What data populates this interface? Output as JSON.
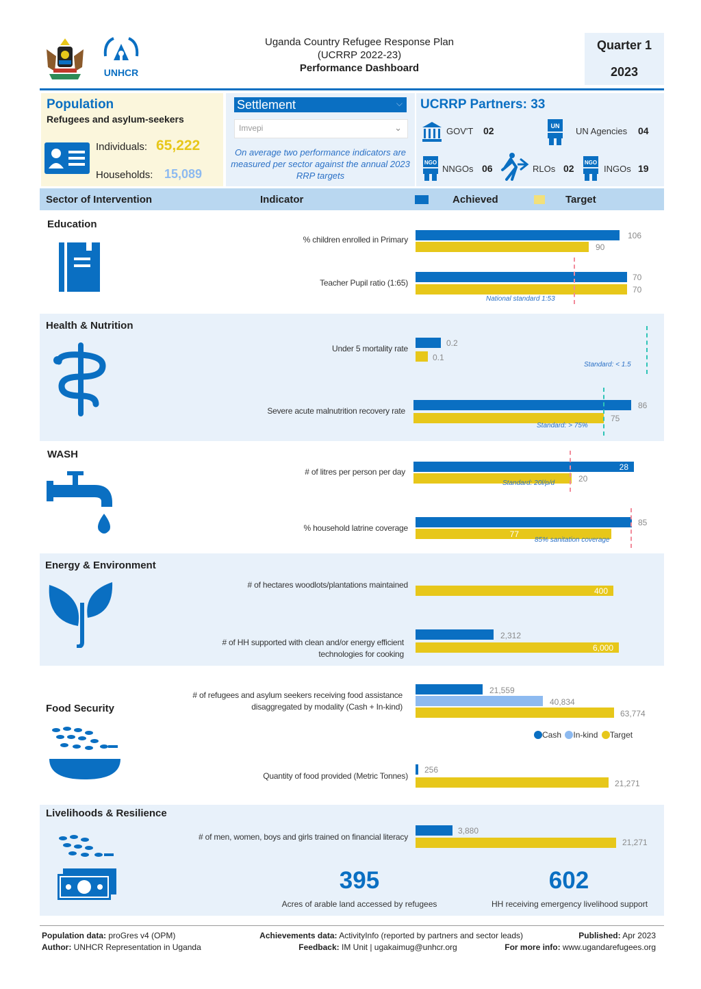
{
  "header": {
    "title_line1": "Uganda Country Refugee Response Plan",
    "title_line2": "(UCRRP 2022-23)",
    "title_line3": "Performance Dashboard",
    "quarter": "Quarter 1",
    "year": "2023",
    "unhcr_logo_text": "UNHCR"
  },
  "population": {
    "title": "Population",
    "subtitle": "Refugees and asylum-seekers",
    "individuals_label": "Individuals:",
    "individuals_value": "65,222",
    "households_label": "Households:",
    "households_value": "15,089"
  },
  "settlement": {
    "label": "Settlement",
    "selected": "Imvepi",
    "note": "On average two performance indicators are measured per sector against the annual 2023 RRP targets"
  },
  "partners": {
    "title": "UCRRP Partners:",
    "total": "33",
    "items": [
      {
        "label": "GOV'T",
        "value": "02"
      },
      {
        "label": "UN Agencies",
        "value": "04"
      },
      {
        "label": "NNGOs",
        "value": "06"
      },
      {
        "label": "RLOs",
        "value": "02"
      },
      {
        "label": "INGOs",
        "value": "19"
      }
    ]
  },
  "columns": {
    "sector": "Sector of Intervention",
    "indicator": "Indicator",
    "achieved": "Achieved",
    "target": "Target"
  },
  "colors": {
    "achieved": "#0a6fc2",
    "target": "#e7c71a",
    "inkind": "#8dbaf0",
    "band": "#e8f1fa",
    "header_band": "#b9d7f0"
  },
  "sectors": {
    "education": {
      "name": "Education",
      "ind1": {
        "label": "% children enrolled in Primary",
        "achieved": "106",
        "target": "90"
      },
      "ind2": {
        "label": "Teacher Pupil ratio (1:65)",
        "achieved": "70",
        "target": "70",
        "standard": "National standard 1:53"
      }
    },
    "health": {
      "name": "Health & Nutrition",
      "ind1": {
        "label": "Under 5 mortality rate",
        "achieved": "0.2",
        "target": "0.1",
        "standard": "Standard: < 1.5"
      },
      "ind2": {
        "label": "Severe acute malnutrition recovery rate",
        "achieved": "86",
        "target": "75",
        "standard": "Standard: > 75%"
      }
    },
    "wash": {
      "name": "WASH",
      "ind1": {
        "label": "# of litres per person per day",
        "achieved": "28",
        "target": "20",
        "standard": "Standard: 20l/p/d"
      },
      "ind2": {
        "label": "% household latrine coverage",
        "achieved": "85",
        "target": "77",
        "standard": "85% sanitation coverage"
      }
    },
    "energy": {
      "name": "Energy & Environment",
      "ind1": {
        "label": "# of hectares woodlots/plantations maintained",
        "target": "400"
      },
      "ind2": {
        "label": "# of HH supported with clean and/or energy efficient technologies for cooking",
        "achieved": "2,312",
        "target": "6,000"
      }
    },
    "food": {
      "name": "Food Security",
      "ind1": {
        "label": "# of refugees and asylum seekers receiving food assistance disaggregated by modality (Cash + In-kind)",
        "cash": "21,559",
        "inkind": "40,834",
        "target": "63,774"
      },
      "legend": {
        "cash": "Cash",
        "inkind": "In-kind",
        "target": "Target"
      },
      "ind2": {
        "label": "Quantity of food provided (Metric Tonnes)",
        "achieved": "256",
        "target": "21,271"
      }
    },
    "livelihoods": {
      "name": "Livelihoods & Resilience",
      "ind1": {
        "label": "# of men, women, boys and girls trained on financial literacy",
        "achieved": "3,880",
        "target": "21,271"
      },
      "kpi1": {
        "value": "395",
        "label": "Acres of arable land accessed by refugees"
      },
      "kpi2": {
        "value": "602",
        "label": "HH receiving emergency livelihood support"
      }
    }
  },
  "footer": {
    "pop_label": "Population data:",
    "pop_value": "proGres v4 (OPM)",
    "author_label": "Author:",
    "author_value": "UNHCR Representation in Uganda",
    "ach_label": "Achievements data:",
    "ach_value": "ActivityInfo (reported by partners and sector leads)",
    "feedback_label": "Feedback:",
    "feedback_value": "IM Unit | ugakaimug@unhcr.org",
    "pub_label": "Published:",
    "pub_value": "Apr 2023",
    "info_label": "For more info:",
    "info_value": "www.ugandarefugees.org"
  },
  "chart_data": [
    {
      "type": "bar",
      "sector": "Education",
      "categories": [
        "% children enrolled in Primary",
        "Teacher Pupil ratio (1:65)"
      ],
      "series": [
        {
          "name": "Achieved",
          "values": [
            106,
            70
          ]
        },
        {
          "name": "Target",
          "values": [
            90,
            70
          ]
        }
      ]
    },
    {
      "type": "bar",
      "sector": "Health & Nutrition",
      "categories": [
        "Under 5 mortality rate",
        "Severe acute malnutrition recovery rate"
      ],
      "series": [
        {
          "name": "Achieved",
          "values": [
            0.2,
            86
          ]
        },
        {
          "name": "Target",
          "values": [
            0.1,
            75
          ]
        }
      ]
    },
    {
      "type": "bar",
      "sector": "WASH",
      "categories": [
        "# of litres per person per day",
        "% household latrine coverage"
      ],
      "series": [
        {
          "name": "Achieved",
          "values": [
            28,
            85
          ]
        },
        {
          "name": "Target",
          "values": [
            20,
            77
          ]
        }
      ]
    },
    {
      "type": "bar",
      "sector": "Energy & Environment",
      "categories": [
        "# of hectares woodlots/plantations maintained",
        "# of HH supported with clean and/or energy efficient technologies for cooking"
      ],
      "series": [
        {
          "name": "Achieved",
          "values": [
            null,
            2312
          ]
        },
        {
          "name": "Target",
          "values": [
            400,
            6000
          ]
        }
      ]
    },
    {
      "type": "bar",
      "sector": "Food Security",
      "categories": [
        "# of refugees and asylum seekers receiving food assistance disaggregated by modality (Cash + In-kind)"
      ],
      "series": [
        {
          "name": "Cash",
          "values": [
            21559
          ]
        },
        {
          "name": "In-kind",
          "values": [
            40834
          ]
        },
        {
          "name": "Target",
          "values": [
            63774
          ]
        }
      ]
    },
    {
      "type": "bar",
      "sector": "Food Security",
      "categories": [
        "Quantity of food provided (Metric Tonnes)"
      ],
      "series": [
        {
          "name": "Achieved",
          "values": [
            256
          ]
        },
        {
          "name": "Target",
          "values": [
            21271
          ]
        }
      ]
    },
    {
      "type": "bar",
      "sector": "Livelihoods & Resilience",
      "categories": [
        "# of men, women, boys and girls trained on financial literacy"
      ],
      "series": [
        {
          "name": "Achieved",
          "values": [
            3880
          ]
        },
        {
          "name": "Target",
          "values": [
            21271
          ]
        }
      ]
    }
  ]
}
